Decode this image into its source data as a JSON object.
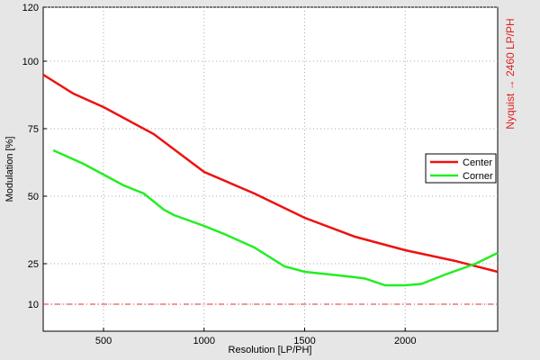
{
  "chart_data": {
    "type": "line",
    "xlabel": "Resolution [LP/PH]",
    "ylabel": "Modulation [%]",
    "right_label": "Nyquist → 2460 LP/PH",
    "xlim": [
      200,
      2460
    ],
    "xticks": [
      500,
      1000,
      1500,
      2000
    ],
    "ylim": [
      0,
      120
    ],
    "yticks": [
      10,
      25,
      50,
      75,
      100,
      120
    ],
    "grid": true,
    "legend": "right",
    "reference_line": {
      "value": 10,
      "color": "#e03030"
    },
    "series": [
      {
        "name": "Center",
        "color": "#ee1111",
        "x": [
          200,
          350,
          500,
          750,
          1000,
          1250,
          1500,
          1750,
          2000,
          2250,
          2460
        ],
        "values": [
          95,
          88,
          83,
          73,
          59,
          51,
          42,
          35,
          30,
          26,
          22
        ]
      },
      {
        "name": "Corner",
        "color": "#22ee22",
        "x": [
          250,
          400,
          500,
          600,
          700,
          800,
          850,
          1000,
          1100,
          1250,
          1400,
          1500,
          1750,
          1800,
          1900,
          2000,
          2080,
          2200,
          2350,
          2460
        ],
        "values": [
          67,
          62,
          58,
          54,
          51,
          45,
          43,
          39,
          36,
          31,
          24,
          22,
          20,
          19.5,
          17,
          17,
          17.5,
          21,
          25,
          29
        ]
      }
    ]
  }
}
